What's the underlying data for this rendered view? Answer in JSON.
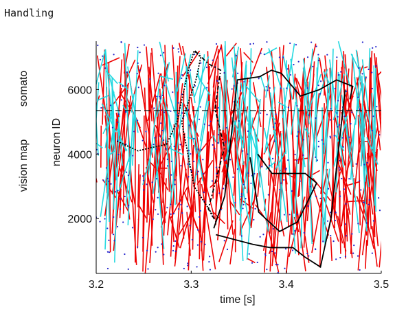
{
  "header": {
    "title": "Handling"
  },
  "regions": {
    "upper": "somato",
    "lower": "vision map"
  },
  "chart_data": {
    "type": "line",
    "xlabel": "time [s]",
    "ylabel": "neuron ID",
    "xlim": [
      3.2,
      3.5
    ],
    "ylim": [
      300,
      7500
    ],
    "x_ticks": [
      "3.2",
      "3.3",
      "3.4",
      "3.5"
    ],
    "y_ticks": [
      "2000",
      "4000",
      "6000"
    ],
    "x_tick_values": [
      3.2,
      3.3,
      3.4,
      3.5
    ],
    "y_tick_values": [
      2000,
      4000,
      6000
    ],
    "boundary_y": 5350,
    "colors": {
      "red": "#ee0000",
      "cyan": "#22d8e0",
      "spike": "#2222cc",
      "black": "#000000"
    },
    "series": [
      {
        "style": "solid-black",
        "x": [
          3.3238,
          3.3353,
          3.3485,
          3.372,
          3.3845,
          3.395,
          3.415,
          3.435,
          3.453,
          3.47,
          3.467
        ],
        "y": [
          1700,
          2700,
          6300,
          6400,
          6600,
          6500,
          5800,
          6000,
          6300,
          6100,
          5700
        ]
      },
      {
        "style": "solid-black",
        "x": [
          3.326,
          3.365,
          3.383,
          3.407,
          3.42,
          3.436,
          3.447,
          3.462
        ],
        "y": [
          1500,
          1200,
          1100,
          1100,
          800,
          500,
          2000,
          6000
        ]
      },
      {
        "style": "solid-black",
        "x": [
          3.362,
          3.371,
          3.393,
          3.412,
          3.432,
          3.42,
          3.385,
          3.37
        ],
        "y": [
          3900,
          2200,
          1600,
          1900,
          3100,
          3400,
          3400,
          4000
        ]
      },
      {
        "style": "dashdot-black",
        "x": [
          3.304,
          3.318,
          3.331,
          3.325,
          3.335,
          3.327,
          3.318,
          3.326
        ],
        "y": [
          7200,
          6800,
          6600,
          5400,
          4200,
          3300,
          2300,
          1900
        ]
      },
      {
        "style": "dotted-black",
        "x": [
          3.222,
          3.244,
          3.258,
          3.274,
          3.285,
          3.297,
          3.303,
          3.31,
          3.305,
          3.29,
          3.303,
          3.323
        ],
        "y": [
          4400,
          4100,
          4200,
          4300,
          5000,
          6600,
          7200,
          7000,
          6300,
          5000,
          3000,
          2100
        ]
      }
    ]
  }
}
